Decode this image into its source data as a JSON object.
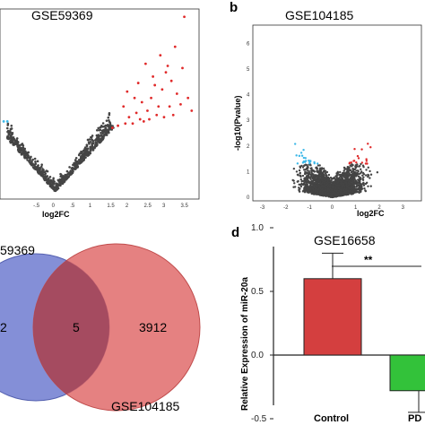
{
  "colors": {
    "up": "#e02a2a",
    "down": "#3db8e8",
    "ns": "#444444",
    "venn_left": "#6e7bd0",
    "venn_right": "#e06b6b",
    "bar_control": "#d43f3f",
    "bar_pd": "#33c23a"
  },
  "chart_data": [
    {
      "type": "scatter",
      "title": "GSE59369",
      "panel": "",
      "xlabel": "log2FC",
      "ylabel": "",
      "x_ticks": [
        "-.5",
        "0",
        ".5",
        "1",
        "1.5",
        "2",
        "2.5",
        "3",
        "3.5"
      ],
      "xlim": [
        -1.5,
        3.9
      ],
      "ylim": [
        0,
        4.2
      ],
      "points": {
        "down": [
          [
            -1.4,
            1.65
          ],
          [
            -1.3,
            1.65
          ]
        ],
        "up": [
          [
            1.55,
            1.5
          ],
          [
            1.7,
            1.55
          ],
          [
            1.9,
            1.6
          ],
          [
            2.0,
            1.75
          ],
          [
            2.1,
            1.6
          ],
          [
            2.2,
            1.85
          ],
          [
            2.3,
            1.7
          ],
          [
            2.35,
            2.1
          ],
          [
            2.4,
            1.65
          ],
          [
            2.5,
            1.9
          ],
          [
            2.6,
            2.2
          ],
          [
            2.55,
            1.7
          ],
          [
            2.7,
            2.5
          ],
          [
            2.75,
            1.8
          ],
          [
            2.8,
            2.0
          ],
          [
            2.9,
            2.4
          ],
          [
            2.95,
            1.75
          ],
          [
            3.0,
            2.8
          ],
          [
            3.1,
            2.0
          ],
          [
            3.15,
            2.6
          ],
          [
            3.2,
            1.8
          ],
          [
            3.3,
            2.3
          ],
          [
            3.4,
            2.05
          ],
          [
            3.45,
            2.9
          ],
          [
            3.5,
            4.1
          ],
          [
            3.6,
            2.2
          ],
          [
            3.7,
            1.9
          ],
          [
            2.25,
            2.55
          ],
          [
            1.95,
            2.35
          ],
          [
            2.45,
            3.0
          ],
          [
            2.85,
            3.2
          ],
          [
            3.05,
            2.95
          ],
          [
            3.25,
            3.4
          ],
          [
            2.15,
            2.2
          ],
          [
            1.85,
            2.0
          ],
          [
            2.65,
            2.7
          ]
        ]
      }
    },
    {
      "type": "scatter",
      "title": "GSE104185",
      "panel": "b",
      "xlabel": "log2FC",
      "ylabel": "-log10(Pvalue)",
      "x_ticks": [
        "-3",
        "-2",
        "-1",
        "0",
        "1",
        "2",
        "3"
      ],
      "y_ticks": [
        "0",
        "1",
        "2",
        "3",
        "4",
        "5",
        "6"
      ],
      "xlim": [
        -3.3,
        3.7
      ],
      "ylim": [
        0,
        6.5
      ]
    },
    {
      "type": "venn",
      "panel": "",
      "sets": [
        "59369",
        "GSE104185"
      ],
      "values": {
        "left_only": "2",
        "both": "5",
        "right_only": "3912"
      }
    },
    {
      "type": "bar",
      "title": "GSE16658",
      "panel": "d",
      "ylabel": "Relative Expression of miR-20a",
      "categories": [
        "Control",
        "PD"
      ],
      "values": [
        0.6,
        -0.28
      ],
      "errors": [
        0.2,
        0.17
      ],
      "ylim": [
        -0.55,
        1.05
      ],
      "y_ticks": [
        "-0.5",
        "0.0",
        "0.5",
        "1.0"
      ],
      "significance": "**"
    }
  ]
}
